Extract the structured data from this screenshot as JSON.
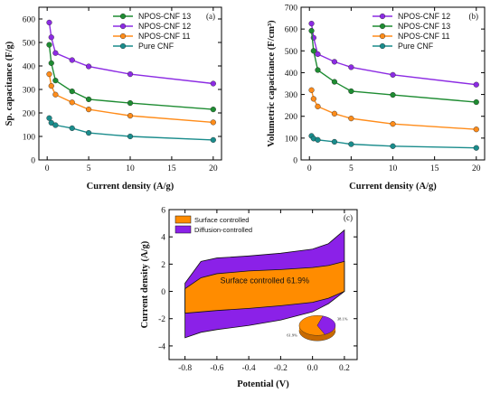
{
  "chart_data": [
    {
      "type": "line",
      "panel_label": "(a)",
      "xlabel": "Current density (A/g)",
      "ylabel": "Sp. capacitance (F/g)",
      "xlim": [
        -1,
        21
      ],
      "ylim": [
        0,
        650
      ],
      "xticks": [
        "0",
        "5",
        "10",
        "15",
        "20"
      ],
      "yticks": [
        "0",
        "100",
        "200",
        "300",
        "400",
        "500",
        "600"
      ],
      "legend_position": "top-right",
      "x": [
        0.25,
        0.5,
        1,
        3,
        5,
        10,
        20
      ],
      "series": [
        {
          "name": "NPOS-CNF 13",
          "color": "#1e8c32",
          "values": [
            490,
            412,
            338,
            292,
            258,
            242,
            215
          ]
        },
        {
          "name": "NPOS-CNF 12",
          "color": "#8c2be3",
          "values": [
            585,
            522,
            455,
            425,
            398,
            365,
            325
          ]
        },
        {
          "name": "NPOS-CNF 11",
          "color": "#ff8c1a",
          "values": [
            365,
            315,
            278,
            245,
            215,
            188,
            160
          ]
        },
        {
          "name": "Pure CNF",
          "color": "#1a8c8c",
          "values": [
            178,
            158,
            148,
            135,
            115,
            100,
            85
          ]
        }
      ]
    },
    {
      "type": "line",
      "panel_label": "(b)",
      "xlabel": "Current density (A/g)",
      "ylabel": "Volumetric capacitance (F/cm³)",
      "xlim": [
        -1,
        21
      ],
      "ylim": [
        0,
        700
      ],
      "xticks": [
        "0",
        "5",
        "10",
        "15",
        "20"
      ],
      "yticks": [
        "0",
        "100",
        "200",
        "300",
        "400",
        "500",
        "600",
        "700"
      ],
      "legend_position": "top-right",
      "x": [
        0.25,
        0.5,
        1,
        3,
        5,
        10,
        20
      ],
      "series": [
        {
          "name": "NPOS-CNF 12",
          "color": "#8c2be3",
          "values": [
            625,
            560,
            485,
            450,
            425,
            390,
            345
          ]
        },
        {
          "name": "NPOS-CNF 13",
          "color": "#1e8c32",
          "values": [
            592,
            500,
            412,
            358,
            315,
            298,
            265
          ]
        },
        {
          "name": "NPOS-CNF 11",
          "color": "#ff8c1a",
          "values": [
            320,
            280,
            245,
            212,
            190,
            165,
            140
          ]
        },
        {
          "name": "Pure CNF",
          "color": "#1a8c8c",
          "values": [
            110,
            98,
            92,
            83,
            72,
            63,
            55
          ]
        }
      ]
    },
    {
      "type": "area",
      "panel_label": "(c)",
      "xlabel": "Potential (V)",
      "ylabel": "Current density (A/g)",
      "xlim": [
        -0.9,
        0.28
      ],
      "ylim": [
        -5,
        6
      ],
      "xticks": [
        "-0.8",
        "-0.6",
        "-0.4",
        "-0.2",
        "0.0",
        "0.2"
      ],
      "yticks": [
        "-4",
        "-2",
        "0",
        "2",
        "4",
        "6"
      ],
      "legend_position": "top-left",
      "annotation": "Surface controlled 61.9%",
      "pie_labels": [
        "38.1%",
        "61.9%"
      ],
      "series": [
        {
          "name": "Surface controlled",
          "color": "#ff8c00",
          "share": 61.9,
          "potential": [
            -0.8,
            -0.7,
            -0.6,
            -0.4,
            -0.2,
            0.0,
            0.1,
            0.2
          ],
          "upper": [
            0.2,
            1.0,
            1.3,
            1.5,
            1.6,
            1.75,
            1.9,
            2.2
          ],
          "lower": [
            -1.6,
            -1.5,
            -1.4,
            -1.25,
            -1.05,
            -0.8,
            -0.5,
            0.0
          ]
        },
        {
          "name": "Diffusion-controlled",
          "color": "#8b21e8",
          "share": 38.1,
          "potential": [
            -0.8,
            -0.7,
            -0.6,
            -0.4,
            -0.2,
            0.0,
            0.1,
            0.2
          ],
          "upper": [
            0.6,
            2.2,
            2.45,
            2.6,
            2.8,
            3.1,
            3.5,
            4.5
          ],
          "lower": [
            -3.4,
            -3.0,
            -2.8,
            -2.5,
            -2.1,
            -1.5,
            -0.9,
            0.0
          ]
        }
      ]
    }
  ]
}
